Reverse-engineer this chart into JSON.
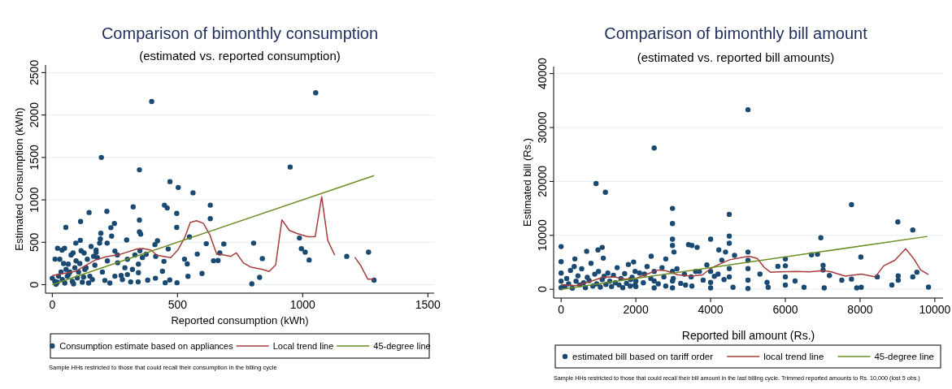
{
  "chart_data": [
    {
      "type": "scatter",
      "title": "Comparison of bimonthly consumption",
      "subtitle": "(estimated vs. reported consumption)",
      "xlabel": "Reported consumption (kWh)",
      "ylabel": "Estimated Consumption (kWh)",
      "xlim": [
        -27,
        1525
      ],
      "ylim": [
        -100,
        2590
      ],
      "xticks": [
        0,
        500,
        1000,
        1500
      ],
      "yticks": [
        0,
        500,
        1000,
        1500,
        2000,
        2500
      ],
      "grid": "y",
      "legend": "bottom",
      "annotations": [
        "Sample HHs restricted to those that could recall their consumption in the billing cycle"
      ],
      "series": [
        {
          "name": "Consumption estimate based on appliances",
          "type": "scatter",
          "marker": "circle",
          "color": "#1a4a72",
          "x": [
            397,
            1052,
            196,
            950,
            348,
            470,
            503,
            562,
            323,
            448,
            459,
            631,
            497,
            147,
            218,
            113,
            54,
            248,
            348,
            631,
            348,
            353,
            497,
            548,
            615,
            685,
            804,
            987,
            995,
            1010,
            1026,
            839,
            1176,
            1263,
            1285,
            797,
            828,
            598,
            542,
            662,
            669,
            644,
            579,
            528,
            539,
            498,
            469,
            451,
            440,
            463,
            446,
            413,
            410,
            420,
            381,
            412,
            344,
            344,
            343,
            313,
            300,
            297,
            275,
            261,
            250,
            237,
            234,
            219,
            194,
            192,
            189,
            175,
            165,
            127,
            112,
            94,
            83,
            64,
            39,
            21,
            49,
            11,
            0,
            20,
            40,
            50,
            60,
            70,
            80,
            90,
            100,
            110,
            120,
            130,
            140,
            150,
            160,
            170,
            180,
            200,
            210,
            220,
            230,
            250,
            260,
            280,
            290,
            300,
            320,
            330,
            350,
            360,
            375,
            30,
            45,
            75,
            95,
            115,
            135,
            155,
            175,
            65,
            85,
            105,
            125,
            145,
            15,
            25,
            35,
            55,
            10
          ],
          "values": [
            2159,
            2262,
            1500,
            1387,
            1354,
            1215,
            1146,
            1083,
            917,
            937,
            904,
            937,
            841,
            851,
            864,
            745,
            675,
            722,
            762,
            778,
            623,
            596,
            675,
            563,
            483,
            480,
            490,
            550,
            424,
            384,
            291,
            308,
            334,
            384,
            53,
            10,
            86,
            132,
            99,
            285,
            374,
            282,
            361,
            301,
            245,
            23,
            56,
            23,
            159,
            421,
            275,
            334,
            473,
            517,
            53,
            76,
            242,
            142,
            33,
            33,
            119,
            527,
            109,
            258,
            397,
            573,
            672,
            490,
            606,
            540,
            490,
            407,
            334,
            374,
            523,
            490,
            374,
            242,
            407,
            430,
            430,
            301,
            76,
            30,
            60,
            20,
            100,
            150,
            40,
            200,
            80,
            250,
            30,
            180,
            300,
            100,
            60,
            230,
            320,
            150,
            50,
            280,
            20,
            100,
            350,
            60,
            200,
            300,
            180,
            350,
            400,
            320,
            360,
            300,
            250,
            350,
            280,
            400,
            200,
            450,
            380,
            120,
            10,
            150,
            90,
            20,
            5,
            100,
            150,
            180,
            40
          ]
        },
        {
          "name": "Local trend line",
          "type": "line",
          "marker": "none",
          "line_style": "solid",
          "color": "#a83c3c",
          "x": [
            0,
            94,
            172,
            217,
            272,
            339,
            362,
            395,
            417,
            473,
            501,
            529,
            551,
            576,
            604,
            629,
            657,
            674,
            713,
            735,
            763,
            791,
            836,
            866,
            892,
            917,
            947,
            975,
            1020,
            1050,
            1076,
            1100,
            1128,
            1168,
            1208,
            1232,
            1260,
            1285
          ],
          "values": [
            109,
            159,
            291,
            331,
            358,
            421,
            427,
            407,
            348,
            318,
            407,
            556,
            732,
            755,
            722,
            589,
            358,
            358,
            334,
            374,
            258,
            209,
            182,
            156,
            232,
            765,
            639,
            606,
            566,
            566,
            1037,
            523,
            348,
            null,
            325,
            225,
            66,
            66
          ]
        },
        {
          "name": "45-degree line",
          "type": "line",
          "marker": "none",
          "line_style": "solid",
          "color": "#6b8e23",
          "x": [
            0,
            1285
          ],
          "values": [
            0,
            1285
          ]
        }
      ]
    },
    {
      "type": "scatter",
      "title": "Comparison of bimonthly bill amount",
      "subtitle": "(estimated vs. reported bill amounts)",
      "xlabel": "Reported bill amount (Rs.)",
      "ylabel": "Estimated bill (Rs.)",
      "xlim": [
        -200,
        10220
      ],
      "ylim": [
        -1630,
        41300
      ],
      "xticks": [
        0,
        2000,
        4000,
        6000,
        8000,
        10000
      ],
      "yticks": [
        0,
        10000,
        20000,
        30000,
        40000
      ],
      "grid": "y",
      "legend": "bottom",
      "annotations": [
        "Sample HHs restricted to those that could recall their bill amount in the last billing cycle. Trimmed reported amounts to Rs. 10,000 (lost 5 obs.)"
      ],
      "series": [
        {
          "name": "estimated bill based on tariff order",
          "type": "scatter",
          "marker": "circle",
          "color": "#1a4a72",
          "x": [
            5000,
            2490,
            935,
            1185,
            2980,
            2980,
            4500,
            7770,
            9010,
            9410,
            6950,
            4000,
            4500,
            4500,
            2980,
            2980,
            3020,
            3410,
            3500,
            3640,
            4220,
            4400,
            4640,
            0,
            0,
            684,
            1100,
            986,
            1130,
            368,
            1940,
            2410,
            2800,
            6700,
            6860,
            8020,
            7010,
            7010,
            5800,
            6000,
            6000,
            6000,
            6000,
            5000,
            5000,
            5000,
            5000,
            5000,
            5320,
            5510,
            5540,
            6260,
            6500,
            7180,
            7040,
            7510,
            7770,
            7910,
            8030,
            8460,
            8850,
            9020,
            9020,
            9410,
            9520,
            9830,
            4000,
            4000,
            4000,
            4500,
            4500,
            4600,
            4200,
            4360,
            3700,
            3480,
            3330,
            2980,
            2980,
            2980,
            2750,
            2490,
            2490,
            2490,
            2230,
            1980,
            1980,
            1860,
            0,
            0,
            0,
            100,
            150,
            200,
            250,
            300,
            350,
            400,
            450,
            500,
            550,
            600,
            650,
            700,
            750,
            800,
            850,
            900,
            950,
            1000,
            1050,
            1100,
            1150,
            1200,
            1250,
            1300,
            1350,
            1400,
            1450,
            1500,
            1550,
            1600,
            1650,
            1700,
            1750,
            1800,
            1850,
            1900,
            2000,
            2000,
            2100,
            2200,
            2300,
            2400,
            2600,
            2700,
            2800,
            3000,
            3100,
            3200,
            3300,
            3500,
            3600,
            3800,
            3900,
            4100,
            4300
          ],
          "values": [
            33300,
            26200,
            19600,
            18000,
            15000,
            12200,
            13900,
            15700,
            12500,
            11000,
            9560,
            9300,
            9860,
            8530,
            9300,
            8120,
            6900,
            8280,
            8120,
            7770,
            7300,
            6900,
            6290,
            7920,
            5110,
            7050,
            7770,
            7300,
            5770,
            5620,
            5060,
            6130,
            5620,
            6390,
            6490,
            5980,
            4450,
            3580,
            4240,
            5620,
            4340,
            2300,
            770,
            6900,
            5370,
            3830,
            1690,
            150,
            2810,
            1280,
            360,
            1530,
            360,
            2560,
            260,
            1690,
            1890,
            260,
            360,
            2300,
            770,
            2500,
            1690,
            2300,
            3170,
            410,
            3320,
            1280,
            260,
            3830,
            2300,
            360,
            2810,
            1790,
            3320,
            2300,
            770,
            3320,
            1530,
            260,
            2300,
            3320,
            1530,
            260,
            2810,
            3320,
            770,
            1790,
            300,
            1500,
            3000,
            500,
            2000,
            1000,
            3500,
            200,
            4200,
            1500,
            2500,
            800,
            3800,
            1200,
            300,
            2200,
            1600,
            4800,
            600,
            2800,
            1000,
            3300,
            400,
            1800,
            2400,
            900,
            3000,
            1500,
            500,
            2600,
            1200,
            4000,
            800,
            2000,
            300,
            2900,
            1100,
            4600,
            600,
            2200,
            1500,
            500,
            3000,
            1200,
            4200,
            2000,
            1000,
            4000,
            600,
            2000,
            3800,
            1100,
            2800,
            600,
            3300,
            1700,
            4500,
            2400,
            5400
          ]
        },
        {
          "name": "local trend line",
          "type": "line",
          "marker": "none",
          "line_style": "solid",
          "color": "#a83c3c",
          "x": [
            0,
            390,
            758,
            1130,
            1420,
            1710,
            2010,
            2300,
            2600,
            2820,
            3110,
            3480,
            3780,
            4000,
            4220,
            4510,
            4810,
            5030,
            5250,
            5430,
            5600,
            5840,
            6280,
            6640,
            7010,
            7230,
            7600,
            8040,
            8410,
            8630,
            8930,
            9220,
            9440,
            9620,
            9830
          ],
          "values": [
            870,
            660,
            1380,
            2250,
            2300,
            1890,
            2040,
            2810,
            3580,
            3420,
            2710,
            2450,
            2660,
            3830,
            4600,
            5470,
            5880,
            6130,
            5720,
            4090,
            3170,
            3220,
            3320,
            3220,
            3470,
            3220,
            2450,
            2810,
            2300,
            4340,
            5370,
            7510,
            5620,
            3580,
            2710
          ]
        },
        {
          "name": "45-degree line",
          "type": "line",
          "marker": "none",
          "line_style": "solid",
          "color": "#6b8e23",
          "x": [
            0,
            9800
          ],
          "values": [
            0,
            9800
          ]
        }
      ]
    }
  ]
}
